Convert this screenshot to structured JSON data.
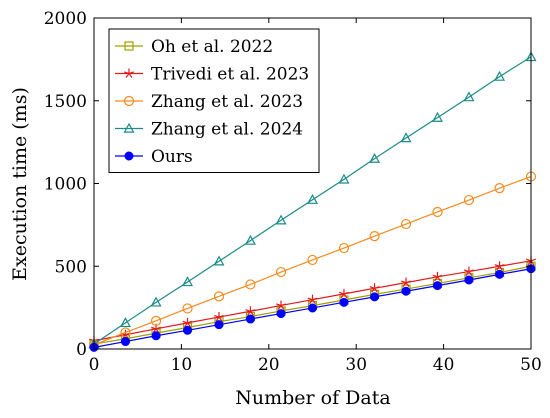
{
  "chart_data": {
    "type": "line",
    "title": "",
    "xlabel": "Number of Data",
    "ylabel": "Execution time (ms)",
    "xlim": [
      0,
      50
    ],
    "ylim": [
      0,
      2000
    ],
    "xticks": [
      0,
      10,
      20,
      30,
      40,
      50
    ],
    "yticks": [
      0,
      500,
      1000,
      1500,
      2000
    ],
    "grid": false,
    "legend_position": "top-left",
    "series": [
      {
        "name": "Oh et al. 2022",
        "color": "#a0a000",
        "marker": "square",
        "x": [
          0,
          3.6,
          7.1,
          10.7,
          14.3,
          17.9,
          21.4,
          25.0,
          28.6,
          32.1,
          35.7,
          39.3,
          42.9,
          46.4,
          50
        ],
        "y": [
          30,
          62,
          96,
          130,
          165,
          196,
          230,
          262,
          296,
          330,
          362,
          396,
          430,
          462,
          500
        ]
      },
      {
        "name": "Trivedi et al. 2023",
        "color": "#e41a1c",
        "marker": "star",
        "x": [
          0,
          3.6,
          7.1,
          10.7,
          14.3,
          17.9,
          21.4,
          25.0,
          28.6,
          32.1,
          35.7,
          39.3,
          42.9,
          46.4,
          50
        ],
        "y": [
          50,
          86,
          122,
          158,
          193,
          228,
          263,
          298,
          333,
          367,
          401,
          436,
          468,
          500,
          533
        ]
      },
      {
        "name": "Zhang et al. 2023",
        "color": "#f58a1f",
        "marker": "circle-open",
        "x": [
          0,
          3.6,
          7.1,
          10.7,
          14.3,
          17.9,
          21.4,
          25.0,
          28.6,
          32.1,
          35.7,
          39.3,
          42.9,
          46.4,
          50
        ],
        "y": [
          25,
          100,
          170,
          245,
          318,
          390,
          465,
          538,
          610,
          682,
          755,
          828,
          900,
          972,
          1042
        ]
      },
      {
        "name": "Zhang et al. 2024",
        "color": "#1b8a8a",
        "marker": "triangle",
        "x": [
          0,
          3.6,
          7.1,
          10.7,
          14.3,
          17.9,
          21.4,
          25.0,
          28.6,
          32.1,
          35.7,
          39.3,
          42.9,
          46.4,
          50
        ],
        "y": [
          30,
          158,
          282,
          405,
          530,
          655,
          778,
          902,
          1025,
          1150,
          1275,
          1398,
          1522,
          1646,
          1765
        ]
      },
      {
        "name": "Ours",
        "color": "#0000ff",
        "marker": "circle-filled",
        "x": [
          0,
          3.6,
          7.1,
          10.7,
          14.3,
          17.9,
          21.4,
          25.0,
          28.6,
          32.1,
          35.7,
          39.3,
          42.9,
          46.4,
          50
        ],
        "y": [
          10,
          45,
          80,
          113,
          147,
          181,
          214,
          248,
          282,
          315,
          349,
          383,
          417,
          451,
          485
        ]
      }
    ]
  }
}
